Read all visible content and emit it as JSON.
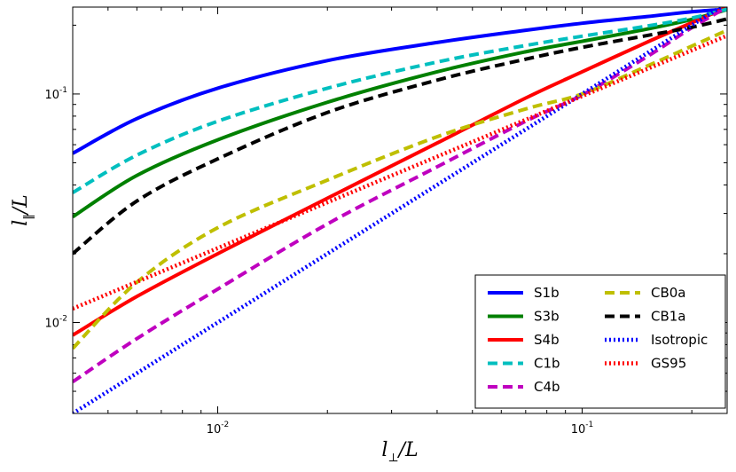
{
  "chart_data": {
    "type": "line",
    "xscale": "log",
    "yscale": "log",
    "xlim": [
      0.004,
      0.25
    ],
    "ylim": [
      0.004,
      0.24
    ],
    "xlabel": {
      "base": "l",
      "sub": "⊥",
      "tail": "/L"
    },
    "ylabel": {
      "base": "l",
      "sub": "‖",
      "tail": "/L"
    },
    "x_major_ticks": [
      {
        "value": 0.01,
        "mantissa": "10",
        "exponent": "-2"
      },
      {
        "value": 0.1,
        "mantissa": "10",
        "exponent": "-1"
      }
    ],
    "y_major_ticks": [
      {
        "value": 0.01,
        "mantissa": "10",
        "exponent": "-2"
      },
      {
        "value": 0.1,
        "mantissa": "10",
        "exponent": "-1"
      }
    ],
    "legend_position": "lower-right",
    "series": [
      {
        "name": "S1b",
        "color": "#0000ff",
        "style": "solid",
        "x": [
          0.004,
          0.006,
          0.01,
          0.02,
          0.04,
          0.07,
          0.1,
          0.15,
          0.2,
          0.25
        ],
        "y": [
          0.055,
          0.078,
          0.106,
          0.14,
          0.168,
          0.19,
          0.204,
          0.218,
          0.229,
          0.235
        ]
      },
      {
        "name": "S3b",
        "color": "#008000",
        "style": "solid",
        "x": [
          0.004,
          0.006,
          0.01,
          0.02,
          0.04,
          0.07,
          0.1,
          0.15,
          0.2,
          0.25
        ],
        "y": [
          0.029,
          0.044,
          0.063,
          0.092,
          0.125,
          0.153,
          0.17,
          0.192,
          0.212,
          0.234
        ]
      },
      {
        "name": "S4b",
        "color": "#ff0000",
        "style": "solid",
        "x": [
          0.004,
          0.006,
          0.01,
          0.02,
          0.04,
          0.07,
          0.1,
          0.15,
          0.2,
          0.25
        ],
        "y": [
          0.0088,
          0.013,
          0.02,
          0.035,
          0.061,
          0.096,
          0.125,
          0.168,
          0.205,
          0.24
        ]
      },
      {
        "name": "C1b",
        "color": "#00bfbf",
        "style": "dashed",
        "x": [
          0.004,
          0.006,
          0.01,
          0.02,
          0.04,
          0.07,
          0.1,
          0.15,
          0.2,
          0.25
        ],
        "y": [
          0.037,
          0.054,
          0.076,
          0.106,
          0.138,
          0.163,
          0.179,
          0.198,
          0.215,
          0.235
        ]
      },
      {
        "name": "C4b",
        "color": "#bf00bf",
        "style": "dashed",
        "x": [
          0.004,
          0.006,
          0.01,
          0.02,
          0.04,
          0.07,
          0.1,
          0.15,
          0.2,
          0.25
        ],
        "y": [
          0.0055,
          0.0085,
          0.014,
          0.027,
          0.048,
          0.076,
          0.099,
          0.145,
          0.195,
          0.24
        ]
      },
      {
        "name": "CB0a",
        "color": "#bfbf00",
        "style": "dashed",
        "x": [
          0.004,
          0.006,
          0.01,
          0.02,
          0.04,
          0.07,
          0.1,
          0.15,
          0.2,
          0.25
        ],
        "y": [
          0.0077,
          0.015,
          0.026,
          0.042,
          0.065,
          0.086,
          0.1,
          0.132,
          0.162,
          0.19
        ]
      },
      {
        "name": "CB1a",
        "color": "#000000",
        "style": "dashed",
        "x": [
          0.004,
          0.006,
          0.01,
          0.02,
          0.04,
          0.07,
          0.1,
          0.15,
          0.2,
          0.25
        ],
        "y": [
          0.02,
          0.034,
          0.052,
          0.083,
          0.115,
          0.142,
          0.16,
          0.18,
          0.196,
          0.213
        ]
      },
      {
        "name": "Isotropic",
        "color": "#0000ff",
        "style": "dotted",
        "x": [
          0.004,
          0.25
        ],
        "y": [
          0.004,
          0.25
        ]
      },
      {
        "name": "GS95",
        "color": "#ff0000",
        "style": "dotted",
        "x": [
          0.004,
          0.25
        ],
        "y": [
          0.0115,
          0.18
        ]
      }
    ]
  }
}
